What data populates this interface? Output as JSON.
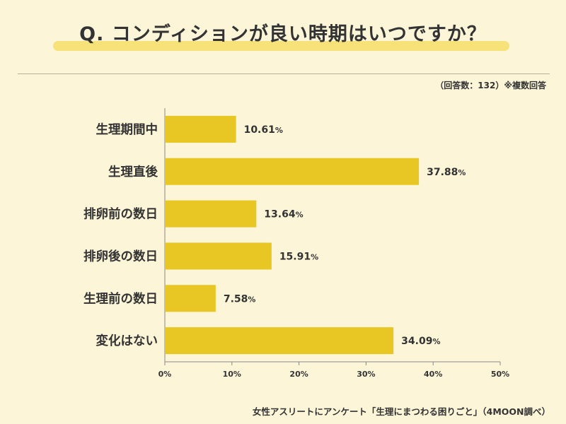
{
  "header": {
    "title": "Q. コンディションが良い時期はいつですか？",
    "note": "（回答数：132）※複数回答"
  },
  "footer": {
    "source": "女性アスリートにアンケート「生理にまつわる困りごと」（4MOON調べ）"
  },
  "colors": {
    "bar": "#e8c624",
    "background": "#fcf5d7",
    "underline": "#f7e27a",
    "axis": "#888888"
  },
  "chart_data": {
    "type": "bar",
    "orientation": "horizontal",
    "title": "Q. コンディションが良い時期はいつですか？",
    "categories": [
      "生理期間中",
      "生理直後",
      "排卵前の数日",
      "排卵後の数日",
      "生理前の数日",
      "変化はない"
    ],
    "values": [
      10.61,
      37.88,
      13.64,
      15.91,
      7.58,
      34.09
    ],
    "value_suffix": "%",
    "xlim": [
      0,
      50
    ],
    "xticks": [
      "0%",
      "10%",
      "20%",
      "30%",
      "40%",
      "50%"
    ],
    "xlabel": "",
    "ylabel": "",
    "grid": false
  }
}
